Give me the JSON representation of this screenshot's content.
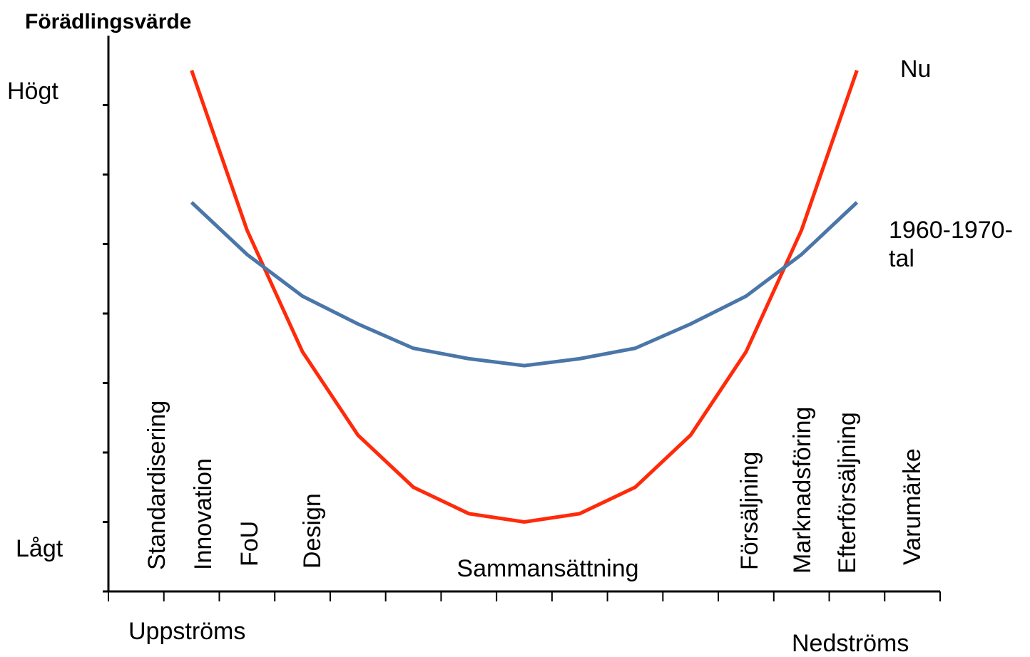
{
  "chart_data": {
    "type": "line",
    "title": "Förädlingsvärde",
    "y_high_label": "Högt",
    "y_low_label": "Lågt",
    "x_left_label": "Uppströms",
    "x_right_label": "Nedströms",
    "stages": [
      "Standardisering",
      "Innovation",
      "FoU",
      "Design",
      "Sammansättning",
      "Försäljning",
      "Marknadsföring",
      "Efterförsäljning",
      "Varumärke"
    ],
    "x": [
      1.5,
      2.5,
      3.5,
      4.5,
      5.5,
      6.5,
      7.5,
      8.5,
      9.5,
      10.5,
      11.5,
      12.5,
      13.5
    ],
    "series": [
      {
        "name": "Nu",
        "color": "#ff2a0a",
        "values": [
          7.5,
          5.2,
          3.45,
          2.25,
          1.5,
          1.12,
          1.0,
          1.12,
          1.5,
          2.25,
          3.45,
          5.2,
          7.5
        ]
      },
      {
        "name": "1960-1970-tal",
        "color": "#4a76a8",
        "values": [
          5.6,
          4.85,
          4.25,
          3.85,
          3.5,
          3.35,
          3.25,
          3.35,
          3.5,
          3.85,
          4.25,
          4.85,
          5.6
        ]
      }
    ],
    "xlim": [
      0,
      15
    ],
    "xticks": [
      0,
      1,
      2,
      3,
      4,
      5,
      6,
      7,
      8,
      9,
      10,
      11,
      12,
      13,
      14,
      15
    ],
    "ylim": [
      0,
      8
    ],
    "yticks": [
      0,
      1,
      2,
      3,
      4,
      5,
      6,
      7
    ]
  }
}
